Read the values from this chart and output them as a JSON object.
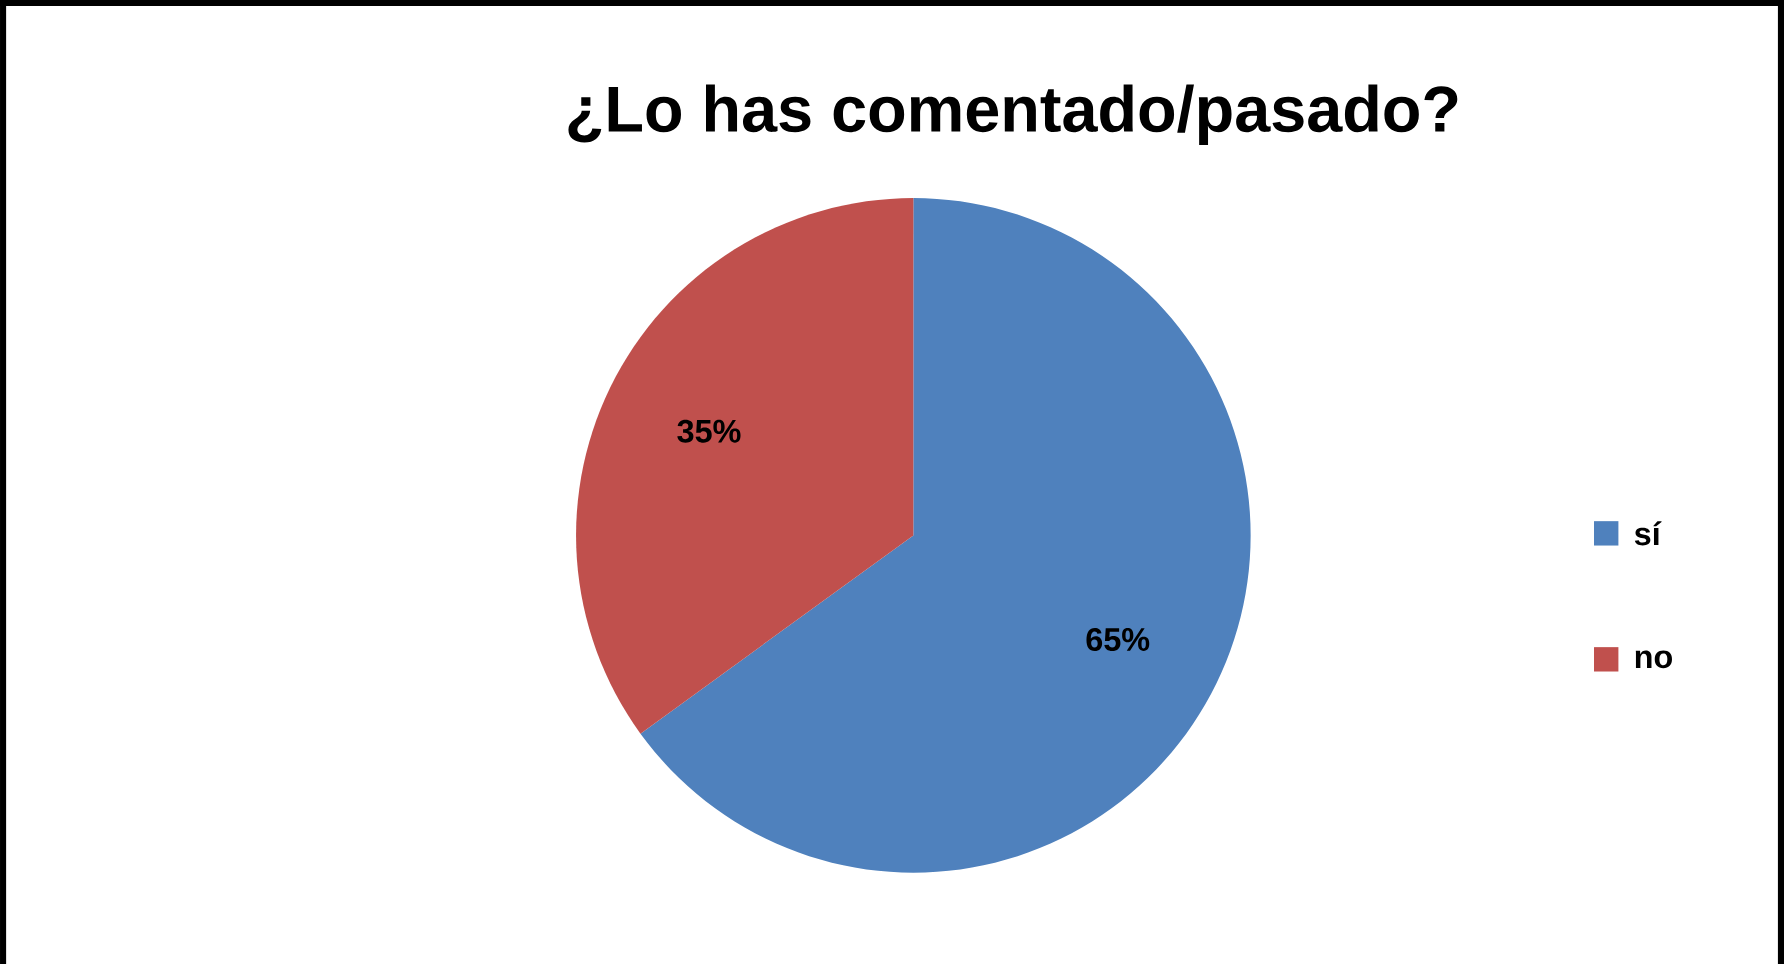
{
  "chart_data": {
    "type": "pie",
    "title": "¿Lo has comentado/pasado?",
    "categories": [
      "sí",
      "no"
    ],
    "values": [
      65,
      35
    ],
    "value_labels": [
      "65%",
      "35%"
    ],
    "colors": [
      "#4f81bd",
      "#c0504d"
    ],
    "legend": "right"
  }
}
